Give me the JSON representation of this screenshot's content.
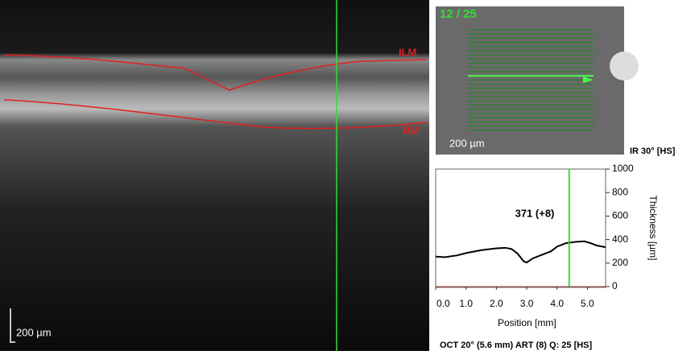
{
  "oct_image": {
    "upper_boundary": "ILM",
    "lower_boundary": "BM",
    "scale_bar": "200 µm"
  },
  "fundus_image": {
    "scan_index": "12 / 25",
    "scale_bar": "200 µm",
    "caption": "IR 30° [HS]"
  },
  "footer": "OCT 20° (5.6 mm) ART (8) Q: 25 [HS]",
  "chart_data": {
    "type": "line",
    "color": "#000000",
    "cursor_color": "#33dd33",
    "x": [
      0,
      0.3,
      0.7,
      1.0,
      1.5,
      2.0,
      2.3,
      2.5,
      2.7,
      2.9,
      3.0,
      3.2,
      3.5,
      3.8,
      4.0,
      4.3,
      4.6,
      4.9,
      5.1,
      5.3,
      5.6
    ],
    "values": [
      255,
      250,
      265,
      285,
      310,
      325,
      330,
      320,
      280,
      215,
      205,
      240,
      270,
      300,
      340,
      370,
      380,
      385,
      370,
      350,
      335
    ],
    "xlim": [
      0,
      5.6
    ],
    "ylim": [
      0,
      1000
    ],
    "xticks": [
      {
        "value": 0,
        "label": "0.0"
      },
      {
        "value": 1,
        "label": "1.0"
      },
      {
        "value": 2,
        "label": "2.0"
      },
      {
        "value": 3,
        "label": "3.0"
      },
      {
        "value": 4,
        "label": "4.0"
      },
      {
        "value": 5,
        "label": "5.0"
      }
    ],
    "yticks": [
      0,
      200,
      400,
      600,
      800,
      1000
    ],
    "x_label": "Position [mm]",
    "y_label": "Thickness [µm]",
    "cursor_x": 4.4,
    "annotation": "371 (+8)"
  }
}
